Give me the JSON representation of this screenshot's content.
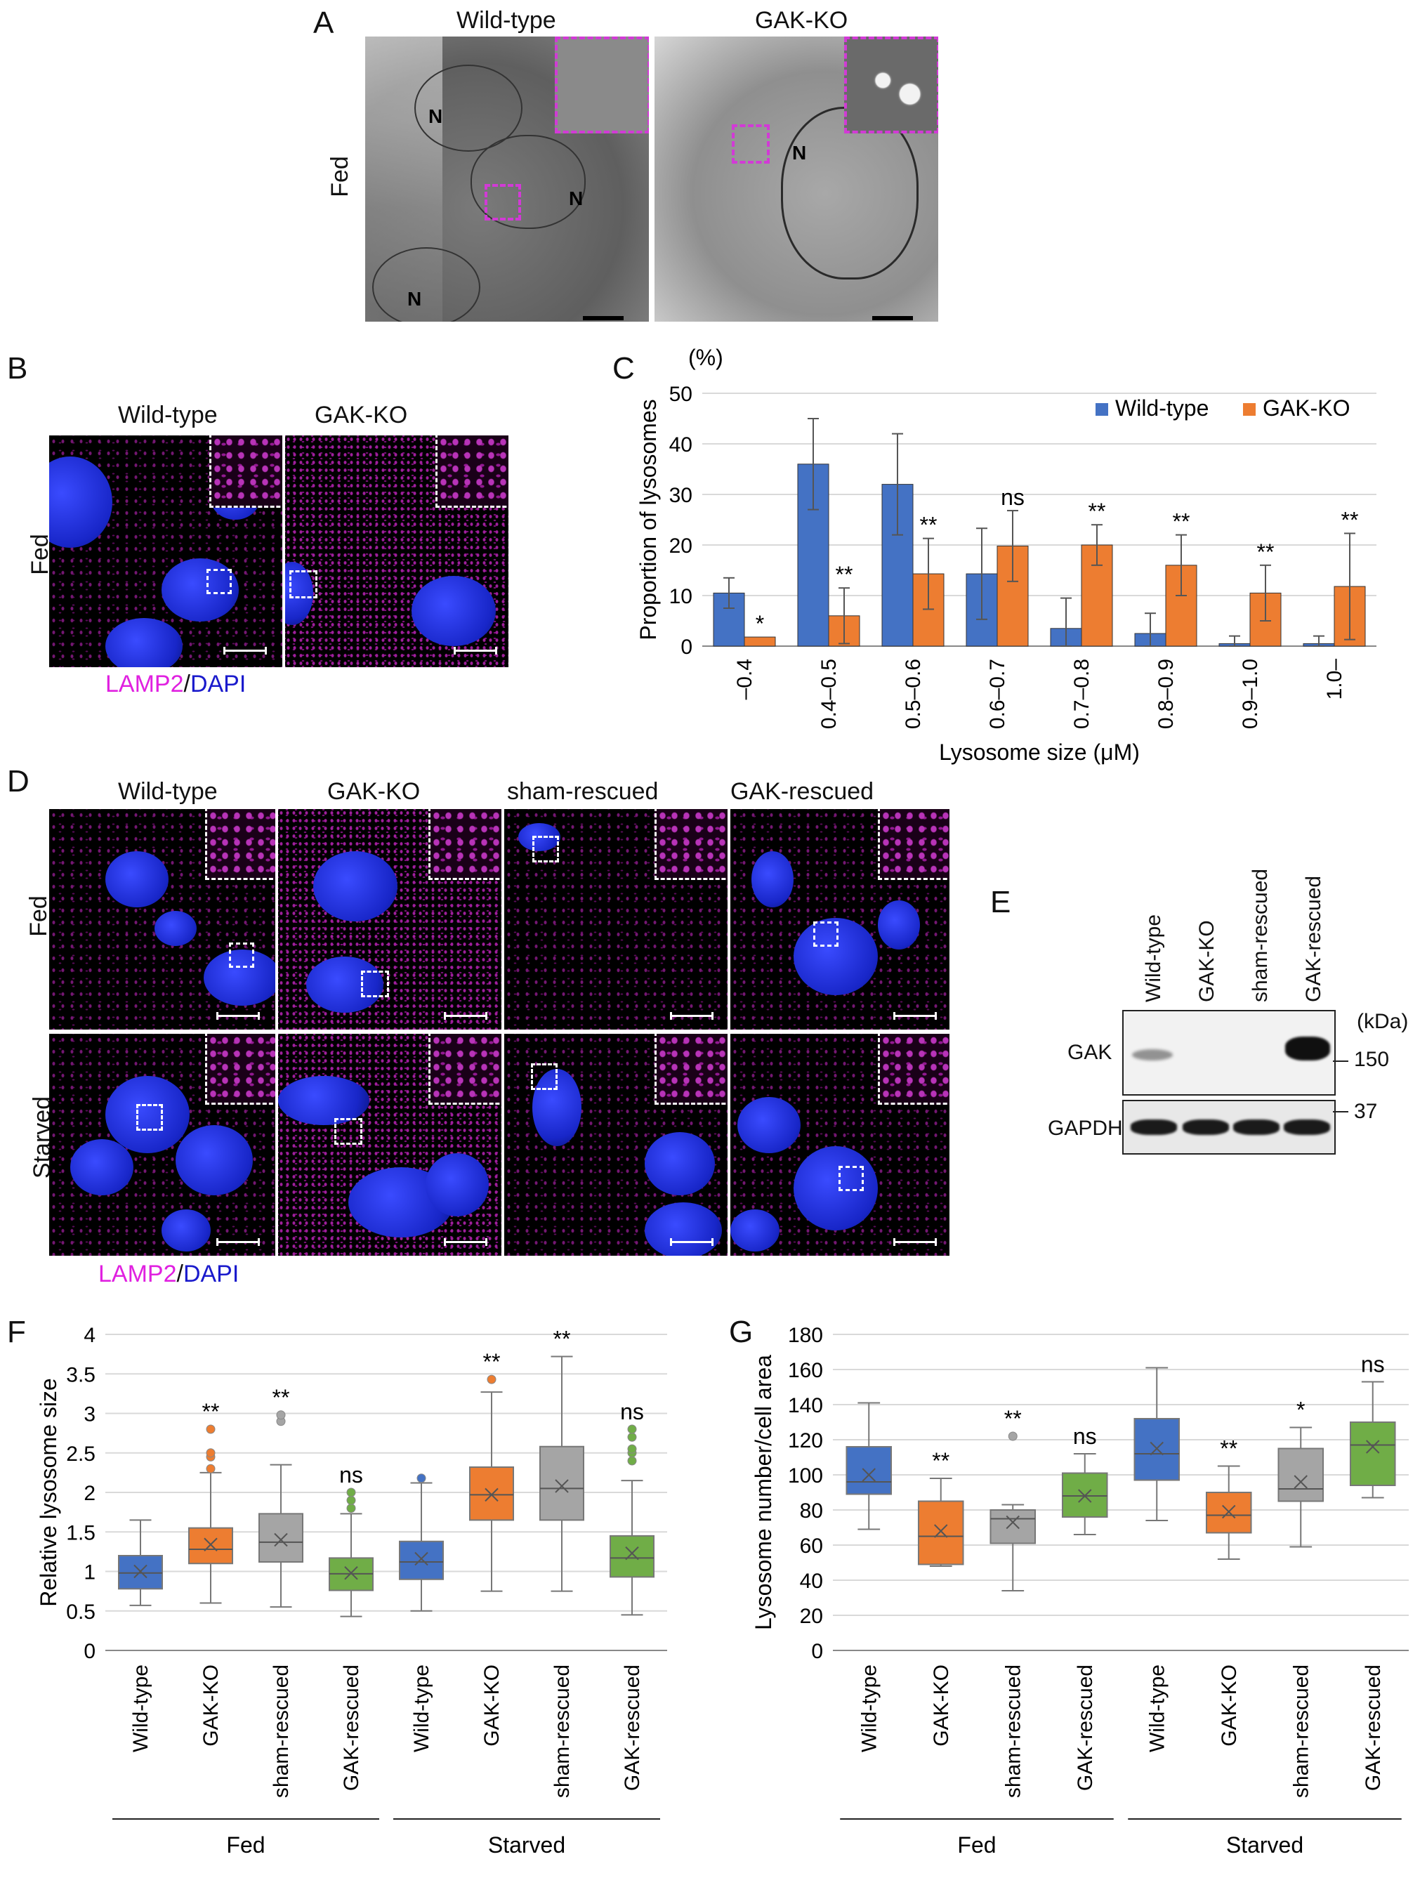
{
  "panels": {
    "A": "A",
    "B": "B",
    "C": "C",
    "D": "D",
    "E": "E",
    "F": "F",
    "G": "G"
  },
  "panelA": {
    "col1": "Wild-type",
    "col2": "GAK-KO",
    "row": "Fed",
    "nucleus": "N"
  },
  "panelB": {
    "col1": "Wild-type",
    "col2": "GAK-KO",
    "row": "Fed",
    "stain1": "LAMP2",
    "stain_sep": "/",
    "stain2": "DAPI"
  },
  "panelD": {
    "cols": [
      "Wild-type",
      "GAK-KO",
      "sham-rescued",
      "GAK-rescued"
    ],
    "rows": [
      "Fed",
      "Starved"
    ],
    "stain1": "LAMP2",
    "stain_sep": "/",
    "stain2": "DAPI"
  },
  "panelE": {
    "lanes": [
      "Wild-type",
      "GAK-KO",
      "sham-rescued",
      "GAK-rescued"
    ],
    "unit": "(kDa)",
    "rows": [
      "GAK",
      "GAPDH"
    ],
    "markers": [
      "150",
      "37"
    ]
  },
  "colors": {
    "wt": "#4472c4",
    "ko": "#ed7d31",
    "sham": "#a5a5a5",
    "rescued": "#70ad47",
    "magenta": "#e020e0",
    "dapi": "#1a1acc"
  },
  "chart_data": [
    {
      "id": "C",
      "type": "bar",
      "unit_label": "(%)",
      "ylabel": "Proportion of lysosomes",
      "xlabel": "Lysosome size (μM)",
      "ylim": [
        0,
        50
      ],
      "yticks": [
        0,
        10,
        20,
        30,
        40,
        50
      ],
      "categories": [
        "–0.4",
        "0.4–0.5",
        "0.5–0.6",
        "0.6–0.7",
        "0.7–0.8",
        "0.8–0.9",
        "0.9–1.0",
        "1.0–"
      ],
      "legend_position": "top-right",
      "series": [
        {
          "name": "Wild-type",
          "values": [
            10.5,
            36,
            32,
            14.3,
            3.5,
            2.5,
            0.5,
            0.5
          ],
          "err": [
            3,
            9,
            10,
            9,
            6,
            4,
            1.5,
            1.5
          ]
        },
        {
          "name": "GAK-KO",
          "values": [
            1.8,
            6,
            14.3,
            19.8,
            20,
            16,
            10.5,
            11.8
          ],
          "err": [
            0,
            5.5,
            7,
            7,
            4,
            6,
            5.5,
            10.5
          ]
        }
      ],
      "annotations": [
        "*",
        "**",
        "**",
        "ns",
        "**",
        "**",
        "**",
        "**"
      ]
    },
    {
      "id": "F",
      "type": "box",
      "ylabel": "Relative lysosome size",
      "ylim": [
        0,
        4
      ],
      "yticks": [
        "0",
        "0.5",
        "1",
        "1.5",
        "2",
        "2.5",
        "3",
        "3.5",
        "4"
      ],
      "categories": [
        "Wild-type",
        "GAK-KO",
        "sham-rescued",
        "GAK-rescued",
        "Wild-type",
        "GAK-KO",
        "sham-rescued",
        "GAK-rescued"
      ],
      "groups": [
        "Fed",
        "Starved"
      ],
      "boxes": [
        {
          "min": 0.57,
          "q1": 0.78,
          "median": 0.98,
          "q3": 1.2,
          "max": 1.65,
          "mean": 1.0,
          "outliers": []
        },
        {
          "min": 0.6,
          "q1": 1.1,
          "median": 1.28,
          "q3": 1.55,
          "max": 2.25,
          "mean": 1.34,
          "outliers": [
            2.3,
            2.45,
            2.5,
            2.8
          ]
        },
        {
          "min": 0.55,
          "q1": 1.12,
          "median": 1.37,
          "q3": 1.73,
          "max": 2.35,
          "mean": 1.4,
          "outliers": [
            2.9,
            2.98
          ]
        },
        {
          "min": 0.43,
          "q1": 0.76,
          "median": 0.97,
          "q3": 1.17,
          "max": 1.73,
          "mean": 0.98,
          "outliers": [
            1.8,
            1.9,
            2.0
          ]
        },
        {
          "min": 0.5,
          "q1": 0.9,
          "median": 1.12,
          "q3": 1.38,
          "max": 2.12,
          "mean": 1.16,
          "outliers": [
            2.18
          ]
        },
        {
          "min": 0.75,
          "q1": 1.65,
          "median": 1.97,
          "q3": 2.32,
          "max": 3.27,
          "mean": 1.97,
          "outliers": [
            3.43
          ]
        },
        {
          "min": 0.75,
          "q1": 1.65,
          "median": 2.05,
          "q3": 2.58,
          "max": 3.72,
          "mean": 2.08,
          "outliers": []
        },
        {
          "min": 0.45,
          "q1": 0.93,
          "median": 1.17,
          "q3": 1.45,
          "max": 2.15,
          "mean": 1.23,
          "outliers": [
            2.4,
            2.5,
            2.55,
            2.7,
            2.8
          ]
        }
      ],
      "annotations": [
        "",
        "**",
        "**",
        "ns",
        "",
        "**",
        "**",
        "ns"
      ]
    },
    {
      "id": "G",
      "type": "box",
      "ylabel": "Lysosome number/cell area",
      "ylim": [
        0,
        180
      ],
      "yticks": [
        "0",
        "20",
        "40",
        "60",
        "80",
        "100",
        "120",
        "140",
        "160",
        "180"
      ],
      "categories": [
        "Wild-type",
        "GAK-KO",
        "sham-rescued",
        "GAK-rescued",
        "Wild-type",
        "GAK-KO",
        "sham-rescued",
        "GAK-rescued"
      ],
      "groups": [
        "Fed",
        "Starved"
      ],
      "boxes": [
        {
          "min": 69,
          "q1": 89,
          "median": 96,
          "q3": 116,
          "max": 141,
          "mean": 100,
          "outliers": []
        },
        {
          "min": 48,
          "q1": 49,
          "median": 65,
          "q3": 85,
          "max": 98,
          "mean": 68,
          "outliers": []
        },
        {
          "min": 34,
          "q1": 61,
          "median": 75,
          "q3": 80,
          "max": 83,
          "mean": 73,
          "outliers": [
            122
          ]
        },
        {
          "min": 66,
          "q1": 76,
          "median": 88,
          "q3": 101,
          "max": 112,
          "mean": 88,
          "outliers": []
        },
        {
          "min": 74,
          "q1": 97,
          "median": 112,
          "q3": 132,
          "max": 161,
          "mean": 115,
          "outliers": []
        },
        {
          "min": 52,
          "q1": 67,
          "median": 77,
          "q3": 90,
          "max": 105,
          "mean": 79,
          "outliers": []
        },
        {
          "min": 59,
          "q1": 85,
          "median": 92,
          "q3": 115,
          "max": 127,
          "mean": 96,
          "outliers": []
        },
        {
          "min": 87,
          "q1": 94,
          "median": 117,
          "q3": 130,
          "max": 153,
          "mean": 116,
          "outliers": []
        }
      ],
      "annotations": [
        "",
        "**",
        "**",
        "ns",
        "",
        "**",
        "*",
        "ns"
      ]
    }
  ]
}
